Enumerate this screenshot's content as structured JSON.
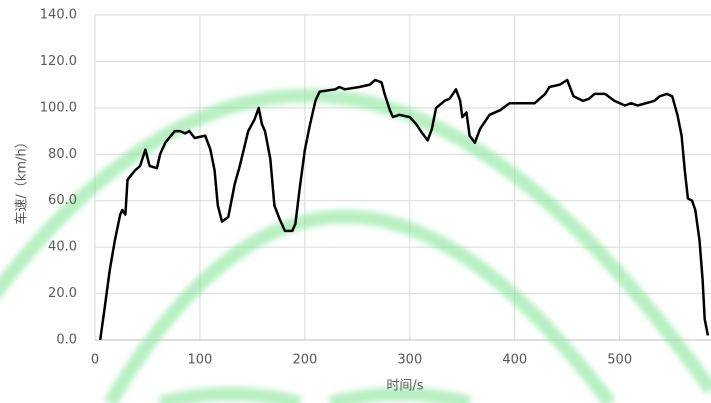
{
  "chart_data": {
    "type": "line",
    "x_label": "时间/s",
    "y_label": "车速/（km/h）",
    "x": [
      5,
      9,
      14,
      19,
      24,
      26,
      29,
      31,
      38,
      43,
      48,
      52,
      59,
      62,
      67,
      76,
      81,
      86,
      90,
      95,
      105,
      110,
      114,
      117,
      121,
      127,
      133,
      138,
      146,
      152,
      156,
      159,
      162,
      167,
      171,
      176,
      181,
      188,
      191,
      195,
      200,
      205,
      210,
      214,
      229,
      233,
      238,
      252,
      262,
      267,
      273,
      276,
      281,
      284,
      290,
      300,
      306,
      312,
      317,
      321,
      325,
      333,
      338,
      344,
      348,
      350,
      354,
      357,
      362,
      367,
      376,
      386,
      395,
      405,
      419,
      424,
      429,
      433,
      443,
      450,
      456,
      465,
      471,
      476,
      486,
      495,
      505,
      511,
      517,
      533,
      538,
      545,
      550,
      555,
      559,
      562,
      565,
      569,
      572,
      576,
      579,
      581,
      584
    ],
    "series": [
      {
        "color": "#000000",
        "values": [
          0,
          13,
          30,
          43,
          54,
          56,
          54,
          69,
          73,
          75,
          82,
          75,
          74,
          80,
          85,
          90,
          90,
          89,
          90,
          87,
          88,
          82,
          73,
          58,
          51,
          53,
          67,
          75,
          90,
          95,
          100,
          93,
          90,
          78,
          58,
          52,
          47,
          47,
          50,
          65,
          82,
          93,
          103,
          107,
          108,
          109,
          108,
          109,
          110,
          112,
          111,
          106,
          99,
          96,
          97,
          96,
          93,
          89,
          86,
          91,
          100,
          103,
          104,
          108,
          103,
          96,
          98,
          88,
          85,
          91,
          97,
          99,
          102,
          102,
          102,
          104,
          106,
          109,
          110,
          112,
          105,
          103,
          104,
          106,
          106,
          103,
          101,
          102,
          101,
          103,
          105,
          106,
          105,
          97,
          88,
          73,
          61,
          60,
          56,
          43,
          26,
          9,
          2
        ]
      }
    ],
    "xlim": [
      0,
      587
    ],
    "xticks": [
      0,
      100,
      200,
      300,
      400,
      500
    ],
    "ylim": [
      0,
      140
    ],
    "yticks": [
      {
        "value": 0,
        "label": "0.0"
      },
      {
        "value": 20,
        "label": "20.0"
      },
      {
        "value": 40,
        "label": "40.0"
      },
      {
        "value": 60,
        "label": "60.0"
      },
      {
        "value": 80,
        "label": "80.0"
      },
      {
        "value": 100,
        "label": "100.0"
      },
      {
        "value": 120,
        "label": "120.0"
      },
      {
        "value": 140,
        "label": "140.0"
      }
    ],
    "grid": true
  }
}
